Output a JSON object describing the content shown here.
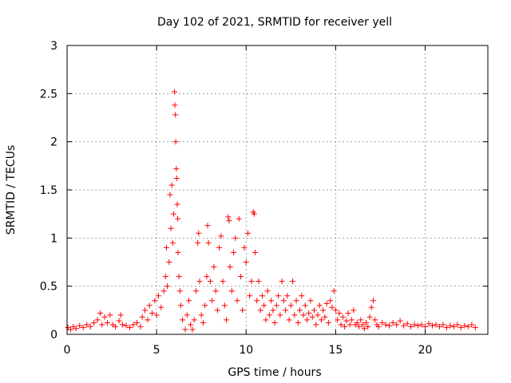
{
  "chart_data": {
    "type": "scatter",
    "title": "Day 102 of 2021, SRMTID for receiver yell",
    "xlabel": "GPS time / hours",
    "ylabel": "SRMTID / TECUs",
    "xlim": [
      0,
      23.5
    ],
    "ylim": [
      0,
      3
    ],
    "xticks": [
      0,
      5,
      10,
      15,
      20
    ],
    "yticks": [
      0,
      0.5,
      1,
      1.5,
      2,
      2.5,
      3
    ],
    "xtick_labels": [
      "0",
      "5",
      "10",
      "15",
      "20"
    ],
    "ytick_labels": [
      "0",
      "0.5",
      "1",
      "1.5",
      "2",
      "2.5",
      "3"
    ],
    "grid": true,
    "marker": "+",
    "color": "#ff0000",
    "series": [
      {
        "name": "SRMTID",
        "points": [
          [
            0.05,
            0.07
          ],
          [
            0.2,
            0.05
          ],
          [
            0.35,
            0.08
          ],
          [
            0.5,
            0.06
          ],
          [
            0.7,
            0.09
          ],
          [
            0.9,
            0.07
          ],
          [
            1.1,
            0.1
          ],
          [
            1.3,
            0.08
          ],
          [
            1.5,
            0.12
          ],
          [
            1.7,
            0.15
          ],
          [
            1.85,
            0.22
          ],
          [
            1.95,
            0.1
          ],
          [
            2.1,
            0.18
          ],
          [
            2.25,
            0.12
          ],
          [
            2.4,
            0.2
          ],
          [
            2.55,
            0.1
          ],
          [
            2.7,
            0.08
          ],
          [
            2.9,
            0.14
          ],
          [
            3.0,
            0.2
          ],
          [
            3.1,
            0.1
          ],
          [
            3.3,
            0.09
          ],
          [
            3.5,
            0.07
          ],
          [
            3.7,
            0.1
          ],
          [
            3.9,
            0.12
          ],
          [
            4.1,
            0.08
          ],
          [
            4.2,
            0.18
          ],
          [
            4.35,
            0.25
          ],
          [
            4.5,
            0.15
          ],
          [
            4.6,
            0.3
          ],
          [
            4.75,
            0.22
          ],
          [
            4.9,
            0.35
          ],
          [
            5.0,
            0.2
          ],
          [
            5.1,
            0.4
          ],
          [
            5.25,
            0.28
          ],
          [
            5.4,
            0.45
          ],
          [
            5.5,
            0.6
          ],
          [
            5.55,
            0.9
          ],
          [
            5.6,
            0.5
          ],
          [
            5.7,
            0.75
          ],
          [
            5.75,
            1.45
          ],
          [
            5.8,
            1.1
          ],
          [
            5.85,
            1.55
          ],
          [
            5.9,
            0.95
          ],
          [
            5.95,
            1.25
          ],
          [
            6.0,
            2.52
          ],
          [
            6.02,
            2.38
          ],
          [
            6.05,
            2.28
          ],
          [
            6.07,
            2.0
          ],
          [
            6.1,
            1.72
          ],
          [
            6.12,
            1.62
          ],
          [
            6.15,
            1.35
          ],
          [
            6.18,
            1.2
          ],
          [
            6.2,
            0.85
          ],
          [
            6.25,
            0.6
          ],
          [
            6.3,
            0.45
          ],
          [
            6.35,
            0.3
          ],
          [
            6.45,
            0.15
          ],
          [
            6.6,
            0.05
          ],
          [
            6.7,
            0.2
          ],
          [
            6.8,
            0.35
          ],
          [
            6.9,
            0.1
          ],
          [
            7.0,
            0.05
          ],
          [
            7.1,
            0.15
          ],
          [
            7.2,
            0.45
          ],
          [
            7.3,
            0.95
          ],
          [
            7.35,
            1.05
          ],
          [
            7.4,
            0.55
          ],
          [
            7.5,
            0.2
          ],
          [
            7.6,
            0.12
          ],
          [
            7.7,
            0.3
          ],
          [
            7.8,
            0.6
          ],
          [
            7.85,
            1.13
          ],
          [
            7.9,
            0.95
          ],
          [
            8.0,
            0.55
          ],
          [
            8.1,
            0.35
          ],
          [
            8.2,
            0.7
          ],
          [
            8.3,
            0.45
          ],
          [
            8.4,
            0.25
          ],
          [
            8.5,
            0.9
          ],
          [
            8.6,
            1.02
          ],
          [
            8.7,
            0.55
          ],
          [
            8.8,
            0.3
          ],
          [
            8.9,
            0.15
          ],
          [
            9.0,
            1.22
          ],
          [
            9.05,
            1.18
          ],
          [
            9.1,
            0.7
          ],
          [
            9.2,
            0.45
          ],
          [
            9.3,
            0.85
          ],
          [
            9.4,
            1.0
          ],
          [
            9.5,
            0.35
          ],
          [
            9.6,
            1.2
          ],
          [
            9.7,
            0.6
          ],
          [
            9.8,
            0.25
          ],
          [
            9.9,
            0.9
          ],
          [
            10.0,
            0.75
          ],
          [
            10.1,
            1.05
          ],
          [
            10.2,
            0.4
          ],
          [
            10.3,
            0.55
          ],
          [
            10.4,
            1.27
          ],
          [
            10.45,
            1.25
          ],
          [
            10.5,
            0.85
          ],
          [
            10.6,
            0.35
          ],
          [
            10.7,
            0.55
          ],
          [
            10.8,
            0.25
          ],
          [
            10.9,
            0.4
          ],
          [
            11.0,
            0.3
          ],
          [
            11.1,
            0.15
          ],
          [
            11.2,
            0.45
          ],
          [
            11.3,
            0.2
          ],
          [
            11.4,
            0.35
          ],
          [
            11.5,
            0.25
          ],
          [
            11.6,
            0.12
          ],
          [
            11.7,
            0.3
          ],
          [
            11.8,
            0.4
          ],
          [
            11.9,
            0.2
          ],
          [
            12.0,
            0.55
          ],
          [
            12.1,
            0.35
          ],
          [
            12.2,
            0.25
          ],
          [
            12.3,
            0.4
          ],
          [
            12.4,
            0.15
          ],
          [
            12.5,
            0.3
          ],
          [
            12.6,
            0.55
          ],
          [
            12.7,
            0.2
          ],
          [
            12.8,
            0.35
          ],
          [
            12.9,
            0.12
          ],
          [
            13.0,
            0.25
          ],
          [
            13.1,
            0.4
          ],
          [
            13.2,
            0.2
          ],
          [
            13.3,
            0.3
          ],
          [
            13.4,
            0.15
          ],
          [
            13.5,
            0.22
          ],
          [
            13.6,
            0.35
          ],
          [
            13.7,
            0.18
          ],
          [
            13.8,
            0.25
          ],
          [
            13.9,
            0.1
          ],
          [
            14.0,
            0.2
          ],
          [
            14.1,
            0.3
          ],
          [
            14.2,
            0.15
          ],
          [
            14.3,
            0.25
          ],
          [
            14.4,
            0.18
          ],
          [
            14.5,
            0.32
          ],
          [
            14.6,
            0.12
          ],
          [
            14.7,
            0.35
          ],
          [
            14.8,
            0.28
          ],
          [
            14.9,
            0.45
          ],
          [
            15.0,
            0.25
          ],
          [
            15.1,
            0.15
          ],
          [
            15.2,
            0.22
          ],
          [
            15.3,
            0.1
          ],
          [
            15.4,
            0.18
          ],
          [
            15.5,
            0.08
          ],
          [
            15.6,
            0.14
          ],
          [
            15.7,
            0.22
          ],
          [
            15.8,
            0.1
          ],
          [
            15.9,
            0.15
          ],
          [
            16.0,
            0.25
          ],
          [
            16.1,
            0.1
          ],
          [
            16.2,
            0.12
          ],
          [
            16.3,
            0.08
          ],
          [
            16.4,
            0.15
          ],
          [
            16.5,
            0.1
          ],
          [
            16.6,
            0.06
          ],
          [
            16.7,
            0.12
          ],
          [
            16.8,
            0.08
          ],
          [
            16.9,
            0.18
          ],
          [
            17.0,
            0.28
          ],
          [
            17.1,
            0.35
          ],
          [
            17.2,
            0.15
          ],
          [
            17.3,
            0.1
          ],
          [
            17.4,
            0.08
          ],
          [
            17.6,
            0.12
          ],
          [
            17.8,
            0.1
          ],
          [
            18.0,
            0.09
          ],
          [
            18.2,
            0.12
          ],
          [
            18.4,
            0.1
          ],
          [
            18.6,
            0.14
          ],
          [
            18.8,
            0.09
          ],
          [
            19.0,
            0.11
          ],
          [
            19.2,
            0.08
          ],
          [
            19.4,
            0.1
          ],
          [
            19.6,
            0.09
          ],
          [
            19.8,
            0.1
          ],
          [
            20.0,
            0.08
          ],
          [
            20.2,
            0.11
          ],
          [
            20.4,
            0.09
          ],
          [
            20.6,
            0.1
          ],
          [
            20.8,
            0.08
          ],
          [
            21.0,
            0.1
          ],
          [
            21.2,
            0.07
          ],
          [
            21.4,
            0.09
          ],
          [
            21.6,
            0.08
          ],
          [
            21.8,
            0.1
          ],
          [
            22.0,
            0.07
          ],
          [
            22.2,
            0.09
          ],
          [
            22.4,
            0.08
          ],
          [
            22.6,
            0.1
          ],
          [
            22.8,
            0.07
          ]
        ]
      }
    ]
  }
}
